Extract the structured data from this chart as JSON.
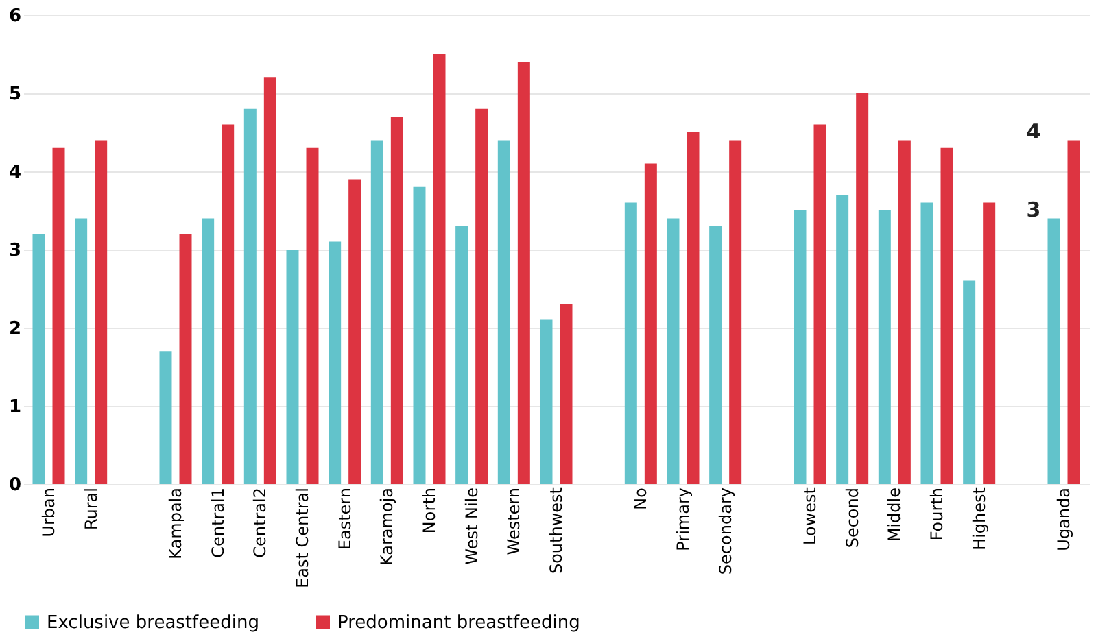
{
  "chart_data": {
    "type": "bar",
    "categories": [
      "Urban",
      "Rural",
      null,
      "Kampala",
      "Central1",
      "Central2",
      "East Central",
      "Eastern",
      "Karamoja",
      "North",
      "West Nile",
      "Western",
      "Southwest",
      null,
      "No",
      "Primary",
      "Secondary",
      null,
      "Lowest",
      "Second",
      "Middle",
      "Fourth",
      "Highest",
      null,
      "Uganda"
    ],
    "series": [
      {
        "name": "Exclusive breastfeeding",
        "color": "#62c3cb",
        "values": [
          3.2,
          3.4,
          null,
          1.7,
          3.4,
          4.8,
          3.0,
          3.1,
          4.4,
          3.8,
          3.3,
          4.4,
          2.1,
          null,
          3.6,
          3.4,
          3.3,
          null,
          3.5,
          3.7,
          3.5,
          3.6,
          2.6,
          null,
          3.4
        ]
      },
      {
        "name": "Predominant breastfeeding",
        "color": "#dd3441",
        "values": [
          4.3,
          4.4,
          null,
          3.2,
          4.6,
          5.2,
          4.3,
          3.9,
          4.7,
          5.5,
          4.8,
          5.4,
          2.3,
          null,
          4.1,
          4.5,
          4.4,
          null,
          4.6,
          5.0,
          4.4,
          4.3,
          3.6,
          null,
          4.4
        ]
      }
    ],
    "ylim": [
      0,
      6
    ],
    "yticks": [
      0,
      1,
      2,
      3,
      4,
      5,
      6
    ],
    "grid": "y",
    "legend": "bottom",
    "annotations": [
      {
        "text": "3",
        "x": "Uganda",
        "y": 3.4
      },
      {
        "text": "4",
        "x": "Uganda",
        "y": 4.4
      }
    ]
  }
}
